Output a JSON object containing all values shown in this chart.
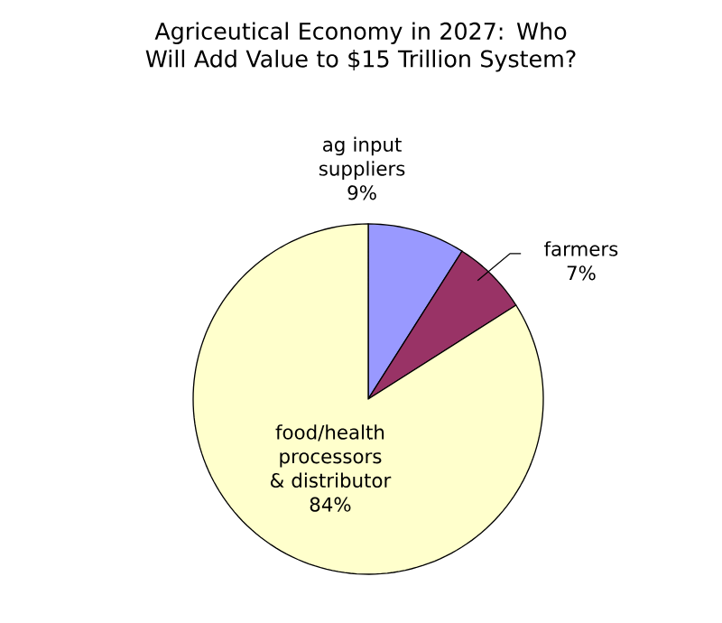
{
  "chart_data": {
    "type": "pie",
    "title": "Agriceutical Economy in 2027: Who Will Add Value to $15 Trillion System?",
    "categories": [
      "ag input suppliers",
      "farmers",
      "food/health processors & distributor"
    ],
    "values": [
      9,
      7,
      84
    ],
    "value_labels": [
      "9%",
      "7%",
      "84%"
    ],
    "colors": [
      "#9999ff",
      "#993366",
      "#ffffcc"
    ]
  }
}
